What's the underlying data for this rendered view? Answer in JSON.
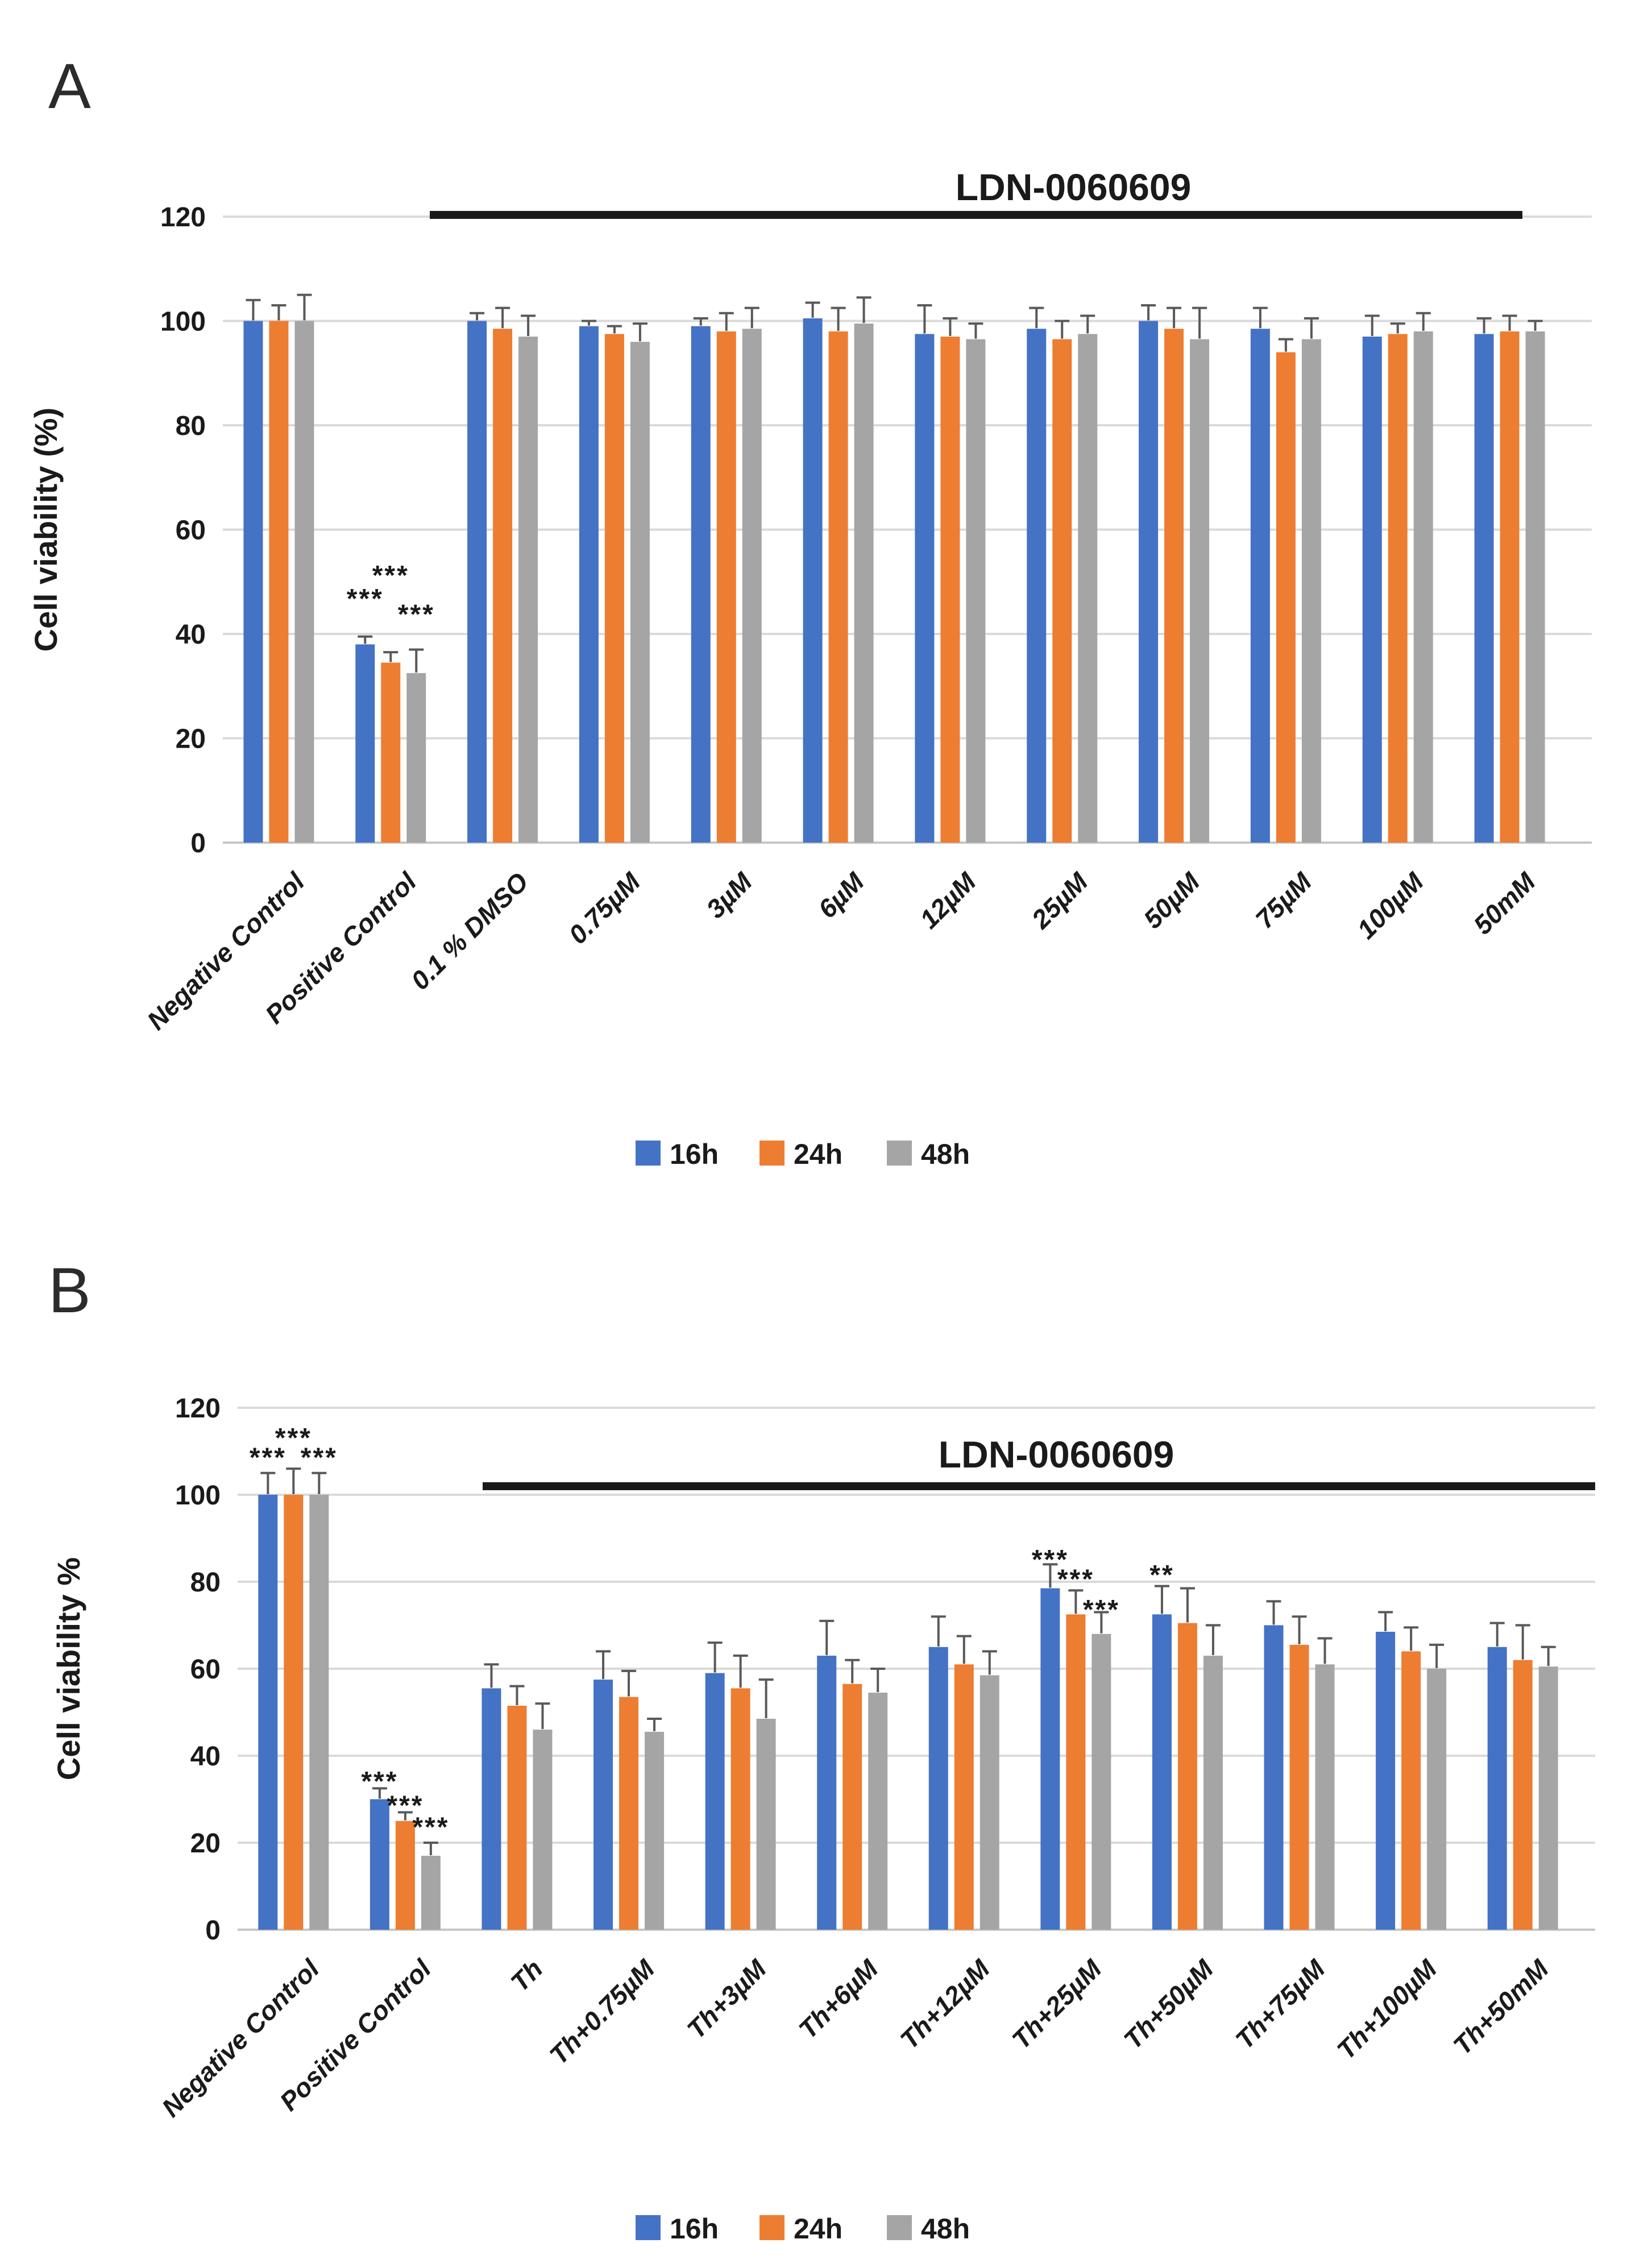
{
  "chart_data": [
    {
      "type": "bar",
      "panel_label": "A",
      "title": "LDN-0060609",
      "ylabel": "Cell viability (%)",
      "ylim": [
        0,
        120
      ],
      "yticks": [
        0,
        20,
        40,
        60,
        80,
        100,
        120
      ],
      "grid": true,
      "legend_position": "bottom",
      "categories": [
        "Negative Control",
        "Positive Control",
        "0.1 % DMSO",
        "0.75µM",
        "3µM",
        "6µM",
        "12µM",
        "25µM",
        "50µM",
        "75µM",
        "100µM",
        "50mM"
      ],
      "series": [
        {
          "name": "16h",
          "color": "#4472C4",
          "values": [
            100,
            38,
            100,
            99,
            99,
            100.5,
            97.5,
            98.5,
            100,
            98.5,
            97,
            97.5
          ],
          "errors": [
            4,
            1.5,
            1.5,
            1,
            1.5,
            3,
            5.5,
            4,
            3,
            4,
            4,
            3
          ]
        },
        {
          "name": "24h",
          "color": "#ED7D31",
          "values": [
            100,
            34.5,
            98.5,
            97.5,
            98,
            98,
            97,
            96.5,
            98.5,
            94,
            97.5,
            98
          ],
          "errors": [
            3,
            2,
            4,
            1.5,
            3.5,
            4.5,
            3.5,
            3.5,
            4,
            2.5,
            2,
            3
          ]
        },
        {
          "name": "48h",
          "color": "#A5A5A5",
          "values": [
            100,
            32.5,
            97,
            96,
            98.5,
            99.5,
            96.5,
            97.5,
            96.5,
            96.5,
            98,
            98
          ],
          "errors": [
            5,
            4.5,
            4,
            3.5,
            4,
            5,
            3,
            3.5,
            6,
            4,
            3.5,
            2
          ]
        }
      ],
      "annotations": [
        {
          "category": "Positive Control",
          "series": "16h",
          "text": "***",
          "y": 45
        },
        {
          "category": "Positive Control",
          "series": "24h",
          "text": "***",
          "y": 49.5
        },
        {
          "category": "Positive Control",
          "series": "48h",
          "text": "***",
          "y": 42
        }
      ],
      "compound_bracket": {
        "from_category": "0.1 % DMSO",
        "to_category": "50mM",
        "y_value": 120.5
      }
    },
    {
      "type": "bar",
      "panel_label": "B",
      "title": "LDN-0060609",
      "ylabel": "Cell viability %",
      "ylim": [
        0,
        120
      ],
      "yticks": [
        0,
        20,
        40,
        60,
        80,
        100,
        120
      ],
      "grid": true,
      "legend_position": "bottom",
      "categories": [
        "Negative Control",
        "Positive Control",
        "Th",
        "Th+0.75µM",
        "Th+3µM",
        "Th+6µM",
        "Th+12µM",
        "Th+25µM",
        "Th+50µM",
        "Th+75µM",
        "Th+100µM",
        "Th+50mM"
      ],
      "series": [
        {
          "name": "16h",
          "color": "#4472C4",
          "values": [
            100,
            30,
            55.5,
            57.5,
            59,
            63,
            65,
            78.5,
            72.5,
            70,
            68.5,
            65
          ],
          "errors": [
            5,
            2.5,
            5.5,
            6.5,
            7,
            8,
            7,
            5.5,
            6.5,
            5.5,
            4.5,
            5.5
          ]
        },
        {
          "name": "24h",
          "color": "#ED7D31",
          "values": [
            100,
            25,
            51.5,
            53.5,
            55.5,
            56.5,
            61,
            72.5,
            70.5,
            65.5,
            64,
            62
          ],
          "errors": [
            6,
            2,
            4.5,
            6,
            7.5,
            5.5,
            6.5,
            5.5,
            8,
            6.5,
            5.5,
            8
          ]
        },
        {
          "name": "48h",
          "color": "#A5A5A5",
          "values": [
            100,
            17,
            46,
            45.5,
            48.5,
            54.5,
            58.5,
            68,
            63,
            61,
            60,
            60.5
          ],
          "errors": [
            5,
            3,
            6,
            3,
            9,
            5.5,
            5.5,
            5,
            7,
            6,
            5.5,
            4.5
          ]
        }
      ],
      "annotations": [
        {
          "category": "Negative Control",
          "series": "16h",
          "text": "***",
          "y": 106.5
        },
        {
          "category": "Negative Control",
          "series": "24h",
          "text": "***",
          "y": 111
        },
        {
          "category": "Negative Control",
          "series": "48h",
          "text": "***",
          "y": 106.5
        },
        {
          "category": "Positive Control",
          "series": "16h",
          "text": "***",
          "y": 32
        },
        {
          "category": "Positive Control",
          "series": "24h",
          "text": "***",
          "y": 26.5
        },
        {
          "category": "Positive Control",
          "series": "48h",
          "text": "***",
          "y": 21.5
        },
        {
          "category": "Th+25µM",
          "series": "16h",
          "text": "***",
          "y": 83
        },
        {
          "category": "Th+25µM",
          "series": "24h",
          "text": "***",
          "y": 78.5
        },
        {
          "category": "Th+25µM",
          "series": "48h",
          "text": "***",
          "y": 71.5
        },
        {
          "category": "Th+50µM",
          "series": "16h",
          "text": "**",
          "y": 79.5
        }
      ],
      "compound_bracket": {
        "from_category": "Th",
        "to_category": "Th+50mM",
        "y_value": 102
      }
    }
  ]
}
